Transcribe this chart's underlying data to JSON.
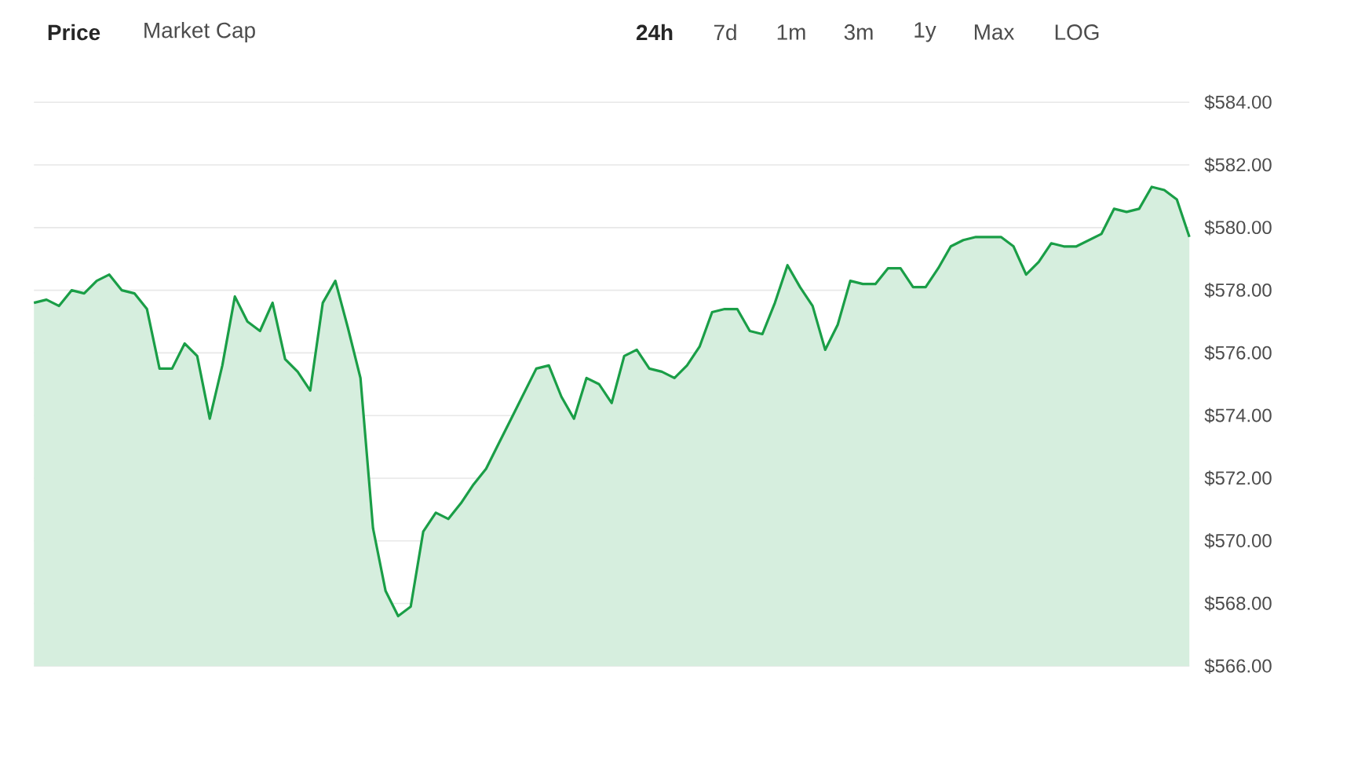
{
  "chart_data": {
    "type": "area",
    "categories": [
      null,
      null,
      null,
      null,
      null,
      null,
      null,
      null,
      null,
      null,
      null,
      null,
      null,
      null,
      null,
      null,
      null,
      null,
      null,
      null,
      null,
      null,
      null,
      null,
      null,
      null,
      null,
      null,
      null,
      null,
      null,
      null,
      null,
      null,
      null,
      null,
      null,
      null,
      null,
      null,
      null,
      null,
      null,
      null,
      null,
      null,
      null,
      null,
      null,
      null,
      null,
      null,
      null,
      null,
      null,
      null,
      null,
      null,
      null,
      null,
      null,
      null,
      null,
      null,
      null,
      null,
      null,
      null,
      null,
      null,
      null,
      null,
      null,
      null,
      null,
      null,
      null,
      null,
      null,
      null,
      null,
      null,
      null,
      null,
      null,
      null,
      null,
      null,
      null,
      null,
      null,
      null,
      null
    ],
    "series": [
      {
        "color": "#1a9e47",
        "values": [
          577.6,
          577.7,
          577.5,
          578.0,
          577.9,
          578.3,
          578.5,
          578.0,
          577.9,
          577.4,
          575.5,
          575.5,
          576.3,
          575.9,
          573.9,
          575.6,
          577.8,
          577.0,
          576.7,
          577.6,
          575.8,
          575.4,
          574.8,
          577.6,
          578.3,
          576.8,
          575.2,
          570.4,
          568.4,
          567.6,
          567.9,
          570.3,
          570.9,
          570.7,
          571.2,
          571.8,
          572.3,
          573.1,
          573.9,
          574.7,
          575.5,
          575.6,
          574.6,
          573.9,
          575.2,
          575.0,
          574.4,
          575.9,
          576.1,
          575.5,
          575.4,
          575.2,
          575.6,
          576.2,
          577.3,
          577.4,
          577.4,
          576.7,
          576.6,
          577.6,
          578.8,
          578.1,
          577.5,
          576.1,
          576.9,
          578.3,
          578.2,
          578.2,
          578.7,
          578.7,
          578.1,
          578.1,
          578.7,
          579.4,
          579.6,
          579.7,
          579.7,
          579.7,
          579.4,
          578.5,
          578.9,
          579.5,
          579.4,
          579.4,
          579.6,
          579.8,
          580.6,
          580.5,
          580.6,
          581.3,
          581.2,
          580.9,
          579.7
        ]
      }
    ],
    "ylim": [
      566,
      584
    ],
    "yticks": [
      {
        "value": 566,
        "label": "$566.00"
      },
      {
        "value": 568,
        "label": "$568.00"
      },
      {
        "value": 570,
        "label": "$570.00"
      },
      {
        "value": 572,
        "label": "$572.00"
      },
      {
        "value": 574,
        "label": "$574.00"
      },
      {
        "value": 576,
        "label": "$576.00"
      },
      {
        "value": 578,
        "label": "$578.00"
      },
      {
        "value": 580,
        "label": "$580.00"
      },
      {
        "value": 582,
        "label": "$582.00"
      },
      {
        "value": 584,
        "label": "$584.00"
      }
    ],
    "grid": "y",
    "annotations": [
      "Price",
      "Market Cap",
      "24h",
      "7d",
      "1m",
      "3m",
      "1y",
      "Max",
      "LOG"
    ]
  }
}
